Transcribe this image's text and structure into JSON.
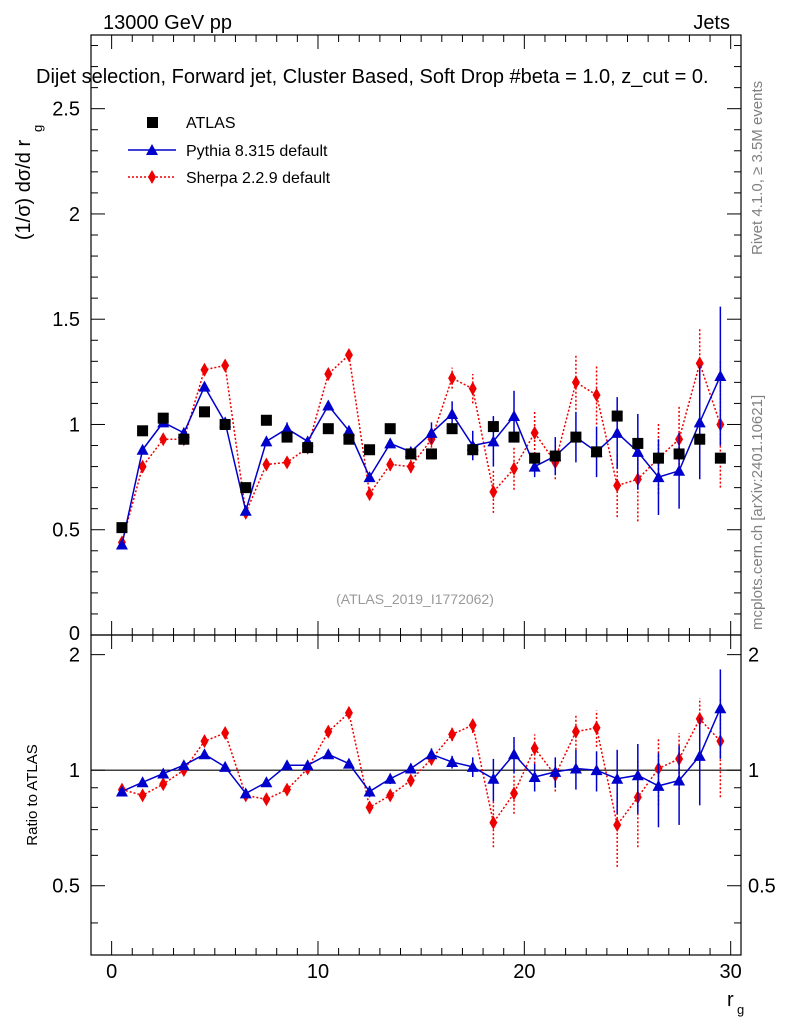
{
  "header": {
    "left": "13000 GeV pp",
    "right": "Jets",
    "title": "Dijet selection, Forward jet, Cluster Based, Soft Drop #beta = 1.0, z_cut = 0.",
    "side_rivet": "Rivet 4.1.0, ≥ 3.5M events",
    "side_mcplots": "mcplots.cern.ch [arXiv:2401.10621]",
    "analysis_id": "(ATLAS_2019_I1772062)"
  },
  "labels": {
    "main_ylabel": "(1/σ) dσ/d r",
    "main_ylabel_sub": "g",
    "ratio_ylabel": "Ratio to ATLAS",
    "xlabel": "r",
    "xlabel_sub": "g"
  },
  "legend": {
    "atlas": "ATLAS",
    "pythia": "Pythia 8.315 default",
    "sherpa": "Sherpa 2.2.9 default"
  },
  "colors": {
    "atlas": "#000000",
    "pythia": "#0000cc",
    "sherpa": "#ee0000"
  },
  "chart_data": [
    {
      "type": "scatter",
      "panel": "main",
      "xlim": [
        -1,
        30.5
      ],
      "ylim": [
        0,
        2.85
      ],
      "yticks": [
        0.5,
        1,
        1.5,
        2,
        2.5
      ],
      "ytick_labels": [
        "0.5",
        "1",
        "1.5",
        "2",
        "2.5"
      ],
      "y_bottom_label": "0",
      "x": [
        0.5,
        1.5,
        2.5,
        3.5,
        4.5,
        5.5,
        6.5,
        7.5,
        8.5,
        9.5,
        10.5,
        11.5,
        12.5,
        13.5,
        14.5,
        15.5,
        16.5,
        17.5,
        18.5,
        19.5,
        20.5,
        21.5,
        22.5,
        23.5,
        24.5,
        25.5,
        26.5,
        27.5,
        28.5,
        29.5
      ],
      "series": [
        {
          "name": "ATLAS",
          "values": [
            0.51,
            0.97,
            1.03,
            0.93,
            1.06,
            1.0,
            0.7,
            1.02,
            0.94,
            0.89,
            0.98,
            0.93,
            0.88,
            0.98,
            0.86,
            0.86,
            0.98,
            0.88,
            0.99,
            0.94,
            0.84,
            0.85,
            0.94,
            0.87,
            1.04,
            0.91,
            0.84,
            0.86,
            0.93,
            0.84
          ]
        },
        {
          "name": "Pythia 8.315 default",
          "values": [
            0.43,
            0.88,
            1.01,
            0.96,
            1.18,
            1.01,
            0.59,
            0.92,
            0.98,
            0.92,
            1.09,
            0.97,
            0.75,
            0.91,
            0.87,
            0.96,
            1.05,
            0.9,
            0.92,
            1.04,
            0.8,
            0.85,
            0.94,
            0.87,
            0.96,
            0.87,
            0.75,
            0.78,
            1.01,
            1.23
          ],
          "errors": [
            0,
            0,
            0,
            0,
            0,
            0,
            0,
            0,
            0.03,
            0.02,
            0,
            0,
            0,
            0,
            0,
            0.05,
            0.06,
            0.07,
            0.12,
            0.12,
            0.05,
            0.09,
            0.12,
            0.12,
            0.17,
            0.18,
            0.18,
            0.18,
            0.27,
            0.33
          ]
        },
        {
          "name": "Sherpa 2.2.9 default",
          "values": [
            0.44,
            0.8,
            0.93,
            0.93,
            1.26,
            1.28,
            0.58,
            0.81,
            0.82,
            0.89,
            1.24,
            1.33,
            0.67,
            0.81,
            0.8,
            0.93,
            1.22,
            1.17,
            0.68,
            0.79,
            0.96,
            0.82,
            1.2,
            1.14,
            0.71,
            0.74,
            0.84,
            0.93,
            1.29,
            1.0
          ],
          "errors": [
            0,
            0,
            0,
            0,
            0,
            0,
            0,
            0,
            0,
            0,
            0,
            0.02,
            0.03,
            0.03,
            0.03,
            0.04,
            0.05,
            0.07,
            0.1,
            0.1,
            0.1,
            0.08,
            0.13,
            0.14,
            0.15,
            0.2,
            0.17,
            0.16,
            0.17,
            0.3
          ]
        }
      ]
    },
    {
      "type": "line",
      "panel": "ratio",
      "xlim": [
        -1,
        30.5
      ],
      "ylim": [
        0.33,
        2.25
      ],
      "yticks": [
        0.5,
        1,
        2
      ],
      "ytick_labels": [
        "0.5",
        "1",
        "2"
      ],
      "xticks": [
        0,
        10,
        20,
        30
      ],
      "xtick_labels": [
        "0",
        "10",
        "20",
        "30"
      ],
      "x": [
        0.5,
        1.5,
        2.5,
        3.5,
        4.5,
        5.5,
        6.5,
        7.5,
        8.5,
        9.5,
        10.5,
        11.5,
        12.5,
        13.5,
        14.5,
        15.5,
        16.5,
        17.5,
        18.5,
        19.5,
        20.5,
        21.5,
        22.5,
        23.5,
        24.5,
        25.5,
        26.5,
        27.5,
        28.5,
        29.5
      ],
      "series": [
        {
          "name": "Pythia 8.315 default",
          "values": [
            0.88,
            0.93,
            0.98,
            1.03,
            1.1,
            1.02,
            0.87,
            0.93,
            1.03,
            1.03,
            1.1,
            1.04,
            0.88,
            0.95,
            1.01,
            1.1,
            1.05,
            1.02,
            0.95,
            1.1,
            0.96,
            0.99,
            1.01,
            1.0,
            0.95,
            0.97,
            0.91,
            0.94,
            1.09,
            1.45
          ],
          "errors": [
            0,
            0,
            0,
            0,
            0,
            0,
            0,
            0,
            0,
            0,
            0,
            0,
            0.03,
            0.03,
            0.03,
            0.04,
            0.04,
            0.06,
            0.12,
            0.12,
            0.08,
            0.09,
            0.12,
            0.12,
            0.18,
            0.2,
            0.2,
            0.22,
            0.28,
            0.38
          ]
        },
        {
          "name": "Sherpa 2.2.9 default",
          "values": [
            0.89,
            0.86,
            0.92,
            1.0,
            1.19,
            1.25,
            0.86,
            0.84,
            0.89,
            1.01,
            1.26,
            1.41,
            0.8,
            0.86,
            0.94,
            1.07,
            1.24,
            1.31,
            0.73,
            0.87,
            1.14,
            0.97,
            1.26,
            1.29,
            0.72,
            0.85,
            1.01,
            1.07,
            1.36,
            1.19
          ],
          "errors": [
            0,
            0,
            0,
            0,
            0,
            0,
            0,
            0,
            0,
            0,
            0,
            0.02,
            0.03,
            0.03,
            0.03,
            0.04,
            0.05,
            0.06,
            0.1,
            0.1,
            0.1,
            0.09,
            0.13,
            0.14,
            0.16,
            0.22,
            0.2,
            0.18,
            0.18,
            0.34
          ]
        }
      ]
    }
  ]
}
